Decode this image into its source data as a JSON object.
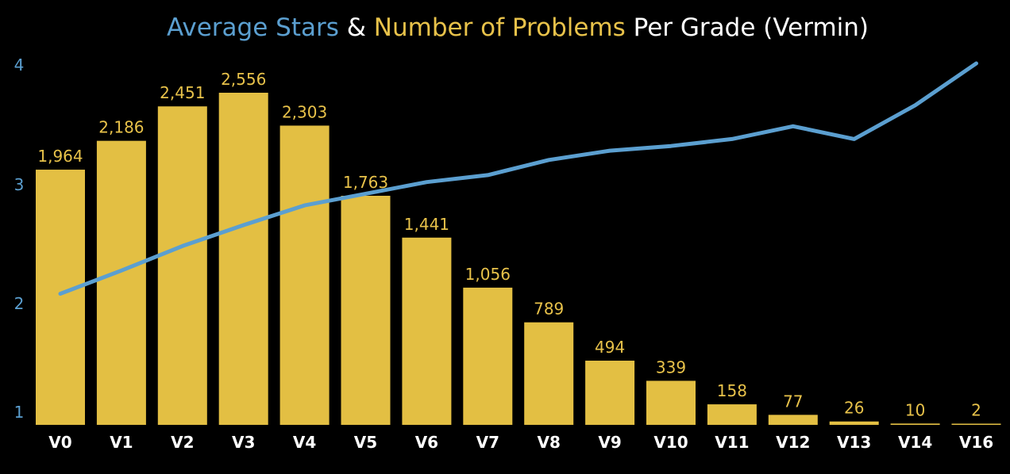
{
  "chart_data": {
    "type": "bar",
    "title_parts": [
      {
        "text": "Average Stars",
        "color": "#5b9fd0"
      },
      {
        "text": " & ",
        "color": "#ffffff"
      },
      {
        "text": "Number of Problems",
        "color": "#e8c24a"
      },
      {
        "text": " Per Grade (Vermin)",
        "color": "#ffffff"
      }
    ],
    "categories": [
      "V0",
      "V1",
      "V2",
      "V3",
      "V4",
      "V5",
      "V6",
      "V7",
      "V8",
      "V9",
      "V10",
      "V11",
      "V12",
      "V13",
      "V14",
      "V16"
    ],
    "series": [
      {
        "name": "Number of Problems",
        "kind": "bar",
        "color": "#e3bf43",
        "values": [
          1964,
          2186,
          2451,
          2556,
          2303,
          1763,
          1441,
          1056,
          789,
          494,
          339,
          158,
          77,
          26,
          10,
          2
        ],
        "labels": [
          "1,964",
          "2,186",
          "2,451",
          "2,556",
          "2,303",
          "1,763",
          "1,441",
          "1,056",
          "789",
          "494",
          "339",
          "158",
          "77",
          "26",
          "10",
          "2"
        ],
        "ylim": [
          0,
          2800
        ]
      },
      {
        "name": "Average Stars",
        "kind": "line",
        "color": "#5b9fd0",
        "values": [
          2.02,
          2.22,
          2.43,
          2.61,
          2.78,
          2.88,
          2.98,
          3.04,
          3.17,
          3.25,
          3.29,
          3.35,
          3.46,
          3.35,
          3.64,
          4.0
        ]
      }
    ],
    "y_axis": {
      "ticks": [
        "1",
        "2",
        "3",
        "4"
      ],
      "tick_values": [
        1,
        2,
        3,
        4
      ],
      "ylim": [
        0.9,
        4.0
      ],
      "color": "#5b9fd0"
    },
    "label_color": "#e8c24a",
    "tick_color": "#ffffff",
    "grid": false,
    "legend": "none"
  }
}
